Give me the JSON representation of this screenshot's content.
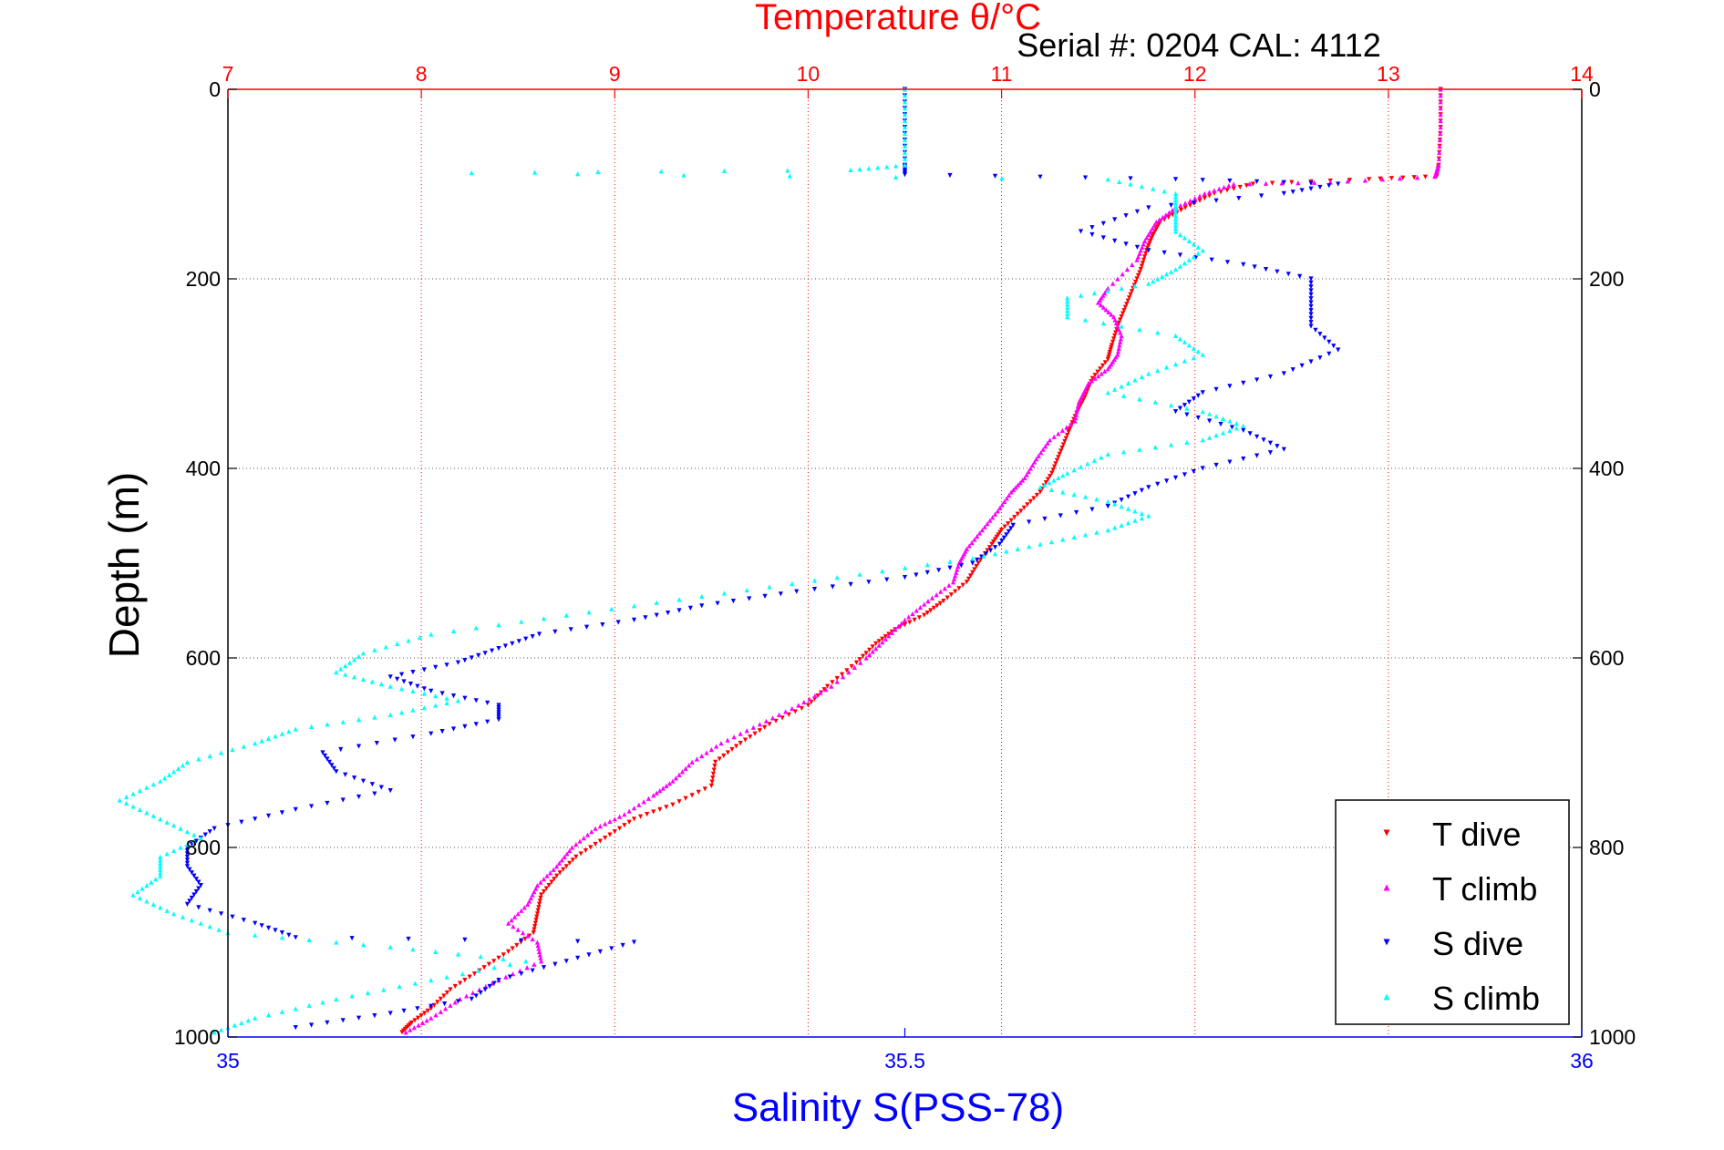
{
  "chart_data": {
    "type": "scatter",
    "title": "Temperature θ/°C",
    "subtitle": "Serial #: 0204  CAL: 4112",
    "ylabel": "Depth (m)",
    "xlabel": "Salinity S(PSS-78)",
    "y": {
      "range": [
        0,
        1000
      ],
      "reversed": true,
      "ticks": [
        0,
        200,
        400,
        600,
        800,
        1000
      ]
    },
    "x_top": {
      "quantity": "Temperature",
      "range": [
        7,
        14
      ],
      "ticks": [
        7,
        8,
        9,
        10,
        11,
        12,
        13,
        14
      ],
      "color": "#ff0000"
    },
    "x_bottom": {
      "quantity": "Salinity",
      "range": [
        35,
        36
      ],
      "ticks": [
        35,
        35.5,
        36
      ],
      "tick_labels": [
        "35",
        "35.5",
        "36"
      ],
      "color": "#0000ff"
    },
    "grid": true,
    "legend_position": "bottom-right",
    "series": [
      {
        "name": "T dive",
        "axis": "top",
        "color": "#ff0000",
        "marker": "triangle-down",
        "points": [
          [
            13.27,
            0
          ],
          [
            13.27,
            40
          ],
          [
            13.26,
            80
          ],
          [
            13.25,
            92
          ],
          [
            12.9,
            95
          ],
          [
            12.3,
            100
          ],
          [
            12.1,
            110
          ],
          [
            11.95,
            125
          ],
          [
            11.82,
            140
          ],
          [
            11.78,
            155
          ],
          [
            11.75,
            170
          ],
          [
            11.72,
            190
          ],
          [
            11.68,
            210
          ],
          [
            11.64,
            230
          ],
          [
            11.6,
            250
          ],
          [
            11.57,
            270
          ],
          [
            11.55,
            285
          ],
          [
            11.47,
            305
          ],
          [
            11.43,
            325
          ],
          [
            11.38,
            345
          ],
          [
            11.34,
            365
          ],
          [
            11.3,
            385
          ],
          [
            11.26,
            405
          ],
          [
            11.2,
            425
          ],
          [
            11.1,
            445
          ],
          [
            11.0,
            465
          ],
          [
            10.95,
            480
          ],
          [
            10.88,
            500
          ],
          [
            10.82,
            520
          ],
          [
            10.7,
            540
          ],
          [
            10.6,
            555
          ],
          [
            10.45,
            570
          ],
          [
            10.35,
            585
          ],
          [
            10.25,
            605
          ],
          [
            10.1,
            630
          ],
          [
            10.0,
            650
          ],
          [
            9.8,
            670
          ],
          [
            9.65,
            690
          ],
          [
            9.52,
            710
          ],
          [
            9.5,
            735
          ],
          [
            9.3,
            755
          ],
          [
            9.1,
            770
          ],
          [
            8.95,
            790
          ],
          [
            8.8,
            810
          ],
          [
            8.7,
            830
          ],
          [
            8.62,
            850
          ],
          [
            8.6,
            870
          ],
          [
            8.58,
            890
          ],
          [
            8.45,
            910
          ],
          [
            8.3,
            930
          ],
          [
            8.15,
            950
          ],
          [
            8.05,
            970
          ],
          [
            7.95,
            985
          ],
          [
            7.9,
            995
          ]
        ]
      },
      {
        "name": "T climb",
        "axis": "top",
        "color": "#ff00ff",
        "marker": "triangle-up",
        "points": [
          [
            13.27,
            0
          ],
          [
            13.27,
            40
          ],
          [
            13.26,
            80
          ],
          [
            13.24,
            92
          ],
          [
            12.7,
            98
          ],
          [
            12.2,
            100
          ],
          [
            12.05,
            110
          ],
          [
            11.9,
            125
          ],
          [
            11.8,
            140
          ],
          [
            11.74,
            160
          ],
          [
            11.7,
            180
          ],
          [
            11.55,
            210
          ],
          [
            11.5,
            225
          ],
          [
            11.58,
            240
          ],
          [
            11.62,
            260
          ],
          [
            11.6,
            280
          ],
          [
            11.55,
            295
          ],
          [
            11.45,
            310
          ],
          [
            11.4,
            330
          ],
          [
            11.38,
            350
          ],
          [
            11.25,
            370
          ],
          [
            11.18,
            390
          ],
          [
            11.12,
            410
          ],
          [
            11.05,
            425
          ],
          [
            10.98,
            445
          ],
          [
            10.9,
            465
          ],
          [
            10.82,
            485
          ],
          [
            10.78,
            500
          ],
          [
            10.75,
            520
          ],
          [
            10.62,
            540
          ],
          [
            10.5,
            560
          ],
          [
            10.4,
            580
          ],
          [
            10.3,
            600
          ],
          [
            10.12,
            630
          ],
          [
            9.95,
            650
          ],
          [
            9.75,
            670
          ],
          [
            9.55,
            690
          ],
          [
            9.4,
            710
          ],
          [
            9.3,
            730
          ],
          [
            9.2,
            745
          ],
          [
            9.05,
            765
          ],
          [
            8.9,
            780
          ],
          [
            8.78,
            800
          ],
          [
            8.7,
            820
          ],
          [
            8.6,
            840
          ],
          [
            8.55,
            860
          ],
          [
            8.45,
            880
          ],
          [
            8.6,
            900
          ],
          [
            8.62,
            920
          ],
          [
            8.4,
            940
          ],
          [
            8.2,
            960
          ],
          [
            8.05,
            980
          ],
          [
            7.92,
            995
          ]
        ]
      },
      {
        "name": "S dive",
        "axis": "bottom",
        "color": "#0000ff",
        "marker": "triangle-down",
        "points": [
          [
            35.5,
            0
          ],
          [
            35.5,
            40
          ],
          [
            35.5,
            80
          ],
          [
            35.5,
            90
          ],
          [
            35.7,
            95
          ],
          [
            35.82,
            100
          ],
          [
            35.78,
            110
          ],
          [
            35.68,
            125
          ],
          [
            35.63,
            150
          ],
          [
            35.68,
            170
          ],
          [
            35.75,
            185
          ],
          [
            35.8,
            200
          ],
          [
            35.8,
            225
          ],
          [
            35.8,
            250
          ],
          [
            35.82,
            275
          ],
          [
            35.78,
            300
          ],
          [
            35.72,
            320
          ],
          [
            35.7,
            340
          ],
          [
            35.75,
            360
          ],
          [
            35.78,
            380
          ],
          [
            35.72,
            400
          ],
          [
            35.68,
            420
          ],
          [
            35.65,
            440
          ],
          [
            35.58,
            460
          ],
          [
            35.57,
            480
          ],
          [
            35.55,
            500
          ],
          [
            35.5,
            515
          ],
          [
            35.42,
            530
          ],
          [
            35.35,
            545
          ],
          [
            35.3,
            560
          ],
          [
            35.23,
            575
          ],
          [
            35.2,
            590
          ],
          [
            35.17,
            605
          ],
          [
            35.12,
            620
          ],
          [
            35.15,
            635
          ],
          [
            35.2,
            650
          ],
          [
            35.2,
            665
          ],
          [
            35.15,
            680
          ],
          [
            35.07,
            700
          ],
          [
            35.08,
            720
          ],
          [
            35.12,
            740
          ],
          [
            35.05,
            760
          ],
          [
            34.99,
            780
          ],
          [
            34.97,
            800
          ],
          [
            34.97,
            820
          ],
          [
            34.98,
            840
          ],
          [
            34.97,
            860
          ],
          [
            35.02,
            880
          ],
          [
            35.05,
            895
          ],
          [
            35.3,
            900
          ],
          [
            35.25,
            920
          ],
          [
            35.2,
            940
          ],
          [
            35.18,
            960
          ],
          [
            35.12,
            975
          ],
          [
            35.05,
            990
          ]
        ]
      },
      {
        "name": "S climb",
        "axis": "bottom",
        "color": "#00ffff",
        "marker": "triangle-up",
        "points": [
          [
            35.5,
            0
          ],
          [
            35.5,
            40
          ],
          [
            35.5,
            80
          ],
          [
            35.46,
            85
          ],
          [
            35.18,
            88
          ],
          [
            35.65,
            95
          ],
          [
            35.7,
            110
          ],
          [
            35.7,
            130
          ],
          [
            35.7,
            150
          ],
          [
            35.72,
            170
          ],
          [
            35.7,
            190
          ],
          [
            35.68,
            205
          ],
          [
            35.62,
            220
          ],
          [
            35.62,
            240
          ],
          [
            35.7,
            260
          ],
          [
            35.72,
            280
          ],
          [
            35.68,
            300
          ],
          [
            35.65,
            320
          ],
          [
            35.72,
            340
          ],
          [
            35.75,
            355
          ],
          [
            35.72,
            370
          ],
          [
            35.65,
            385
          ],
          [
            35.62,
            405
          ],
          [
            35.6,
            420
          ],
          [
            35.65,
            435
          ],
          [
            35.68,
            450
          ],
          [
            35.65,
            465
          ],
          [
            35.6,
            480
          ],
          [
            35.55,
            495
          ],
          [
            35.45,
            515
          ],
          [
            35.35,
            535
          ],
          [
            35.25,
            555
          ],
          [
            35.15,
            575
          ],
          [
            35.1,
            595
          ],
          [
            35.08,
            615
          ],
          [
            35.12,
            630
          ],
          [
            35.17,
            645
          ],
          [
            35.12,
            660
          ],
          [
            35.05,
            675
          ],
          [
            35.02,
            690
          ],
          [
            34.97,
            710
          ],
          [
            34.95,
            730
          ],
          [
            34.92,
            750
          ],
          [
            34.95,
            770
          ],
          [
            34.98,
            790
          ],
          [
            34.95,
            810
          ],
          [
            34.95,
            830
          ],
          [
            34.93,
            850
          ],
          [
            34.96,
            870
          ],
          [
            35.0,
            890
          ],
          [
            35.12,
            905
          ],
          [
            35.22,
            920
          ],
          [
            35.15,
            940
          ],
          [
            35.08,
            960
          ],
          [
            35.02,
            980
          ],
          [
            34.99,
            995
          ]
        ]
      }
    ]
  }
}
